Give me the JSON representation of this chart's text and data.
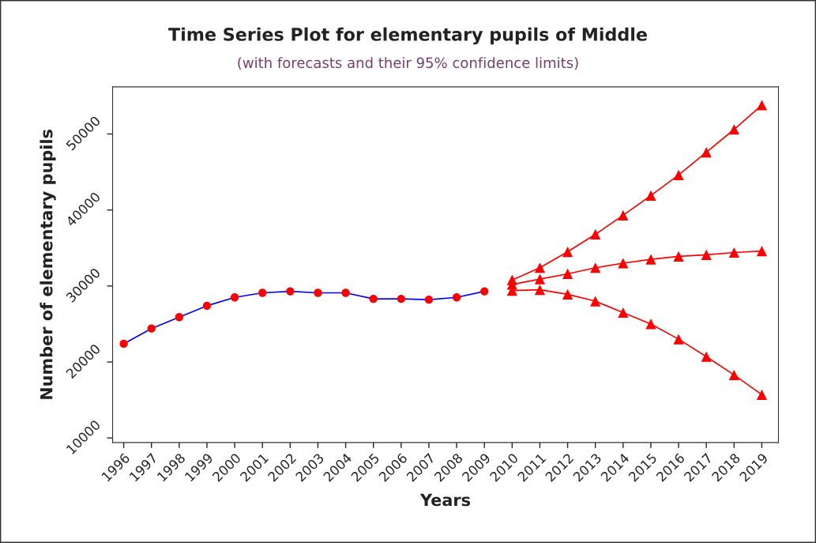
{
  "chart_data": {
    "type": "line",
    "title": "Time Series Plot for elementary pupils of Middle",
    "subtitle": "(with forecasts and their 95% confidence limits)",
    "xlabel": "Years",
    "ylabel": "Number of elementary pupils",
    "categories": [
      "1996",
      "1997",
      "1998",
      "1999",
      "2000",
      "2001",
      "2002",
      "2003",
      "2004",
      "2005",
      "2006",
      "2007",
      "2008",
      "2009",
      "2010",
      "2011",
      "2012",
      "2013",
      "2014",
      "2015",
      "2016",
      "2017",
      "2018",
      "2019"
    ],
    "series": [
      {
        "color": "#0000ff",
        "marker": "circle",
        "colors": [
          "#ff0000",
          "#ff0000",
          "#ff0000",
          "#ff0000",
          "#ff0000",
          "#ff0000",
          "#ff0000",
          "#ff0000",
          "#ff0000",
          "#ff0000",
          "#ff0000",
          "#ff0000",
          "#ff0000",
          "#ff0000",
          null,
          null,
          null,
          null,
          null,
          null,
          null,
          null,
          null,
          null
        ],
        "values": [
          22400,
          24400,
          25900,
          27400,
          28500,
          29100,
          29300,
          29100,
          29100,
          28300,
          28300,
          28200,
          28500,
          29300,
          null,
          null,
          null,
          null,
          null,
          null,
          null,
          null,
          null,
          null
        ]
      },
      {
        "color": "#ff0000",
        "marker": "triangle",
        "values": [
          null,
          null,
          null,
          null,
          null,
          null,
          null,
          null,
          null,
          null,
          null,
          null,
          null,
          null,
          30800,
          32400,
          34500,
          36800,
          39300,
          41900,
          44600,
          47600,
          50600,
          53800
        ]
      },
      {
        "color": "#ff0000",
        "marker": "triangle",
        "values": [
          null,
          null,
          null,
          null,
          null,
          null,
          null,
          null,
          null,
          null,
          null,
          null,
          null,
          null,
          30200,
          30900,
          31600,
          32400,
          33000,
          33500,
          33900,
          34100,
          34400,
          34600
        ]
      },
      {
        "color": "#ff0000",
        "marker": "triangle",
        "values": [
          null,
          null,
          null,
          null,
          null,
          null,
          null,
          null,
          null,
          null,
          null,
          null,
          null,
          null,
          29400,
          29500,
          28900,
          28000,
          26500,
          25000,
          23000,
          20700,
          18300,
          15700
        ]
      }
    ],
    "ylim": [
      9400,
      56200
    ],
    "yticks": [
      10000,
      20000,
      30000,
      40000,
      50000
    ],
    "grid": false
  }
}
